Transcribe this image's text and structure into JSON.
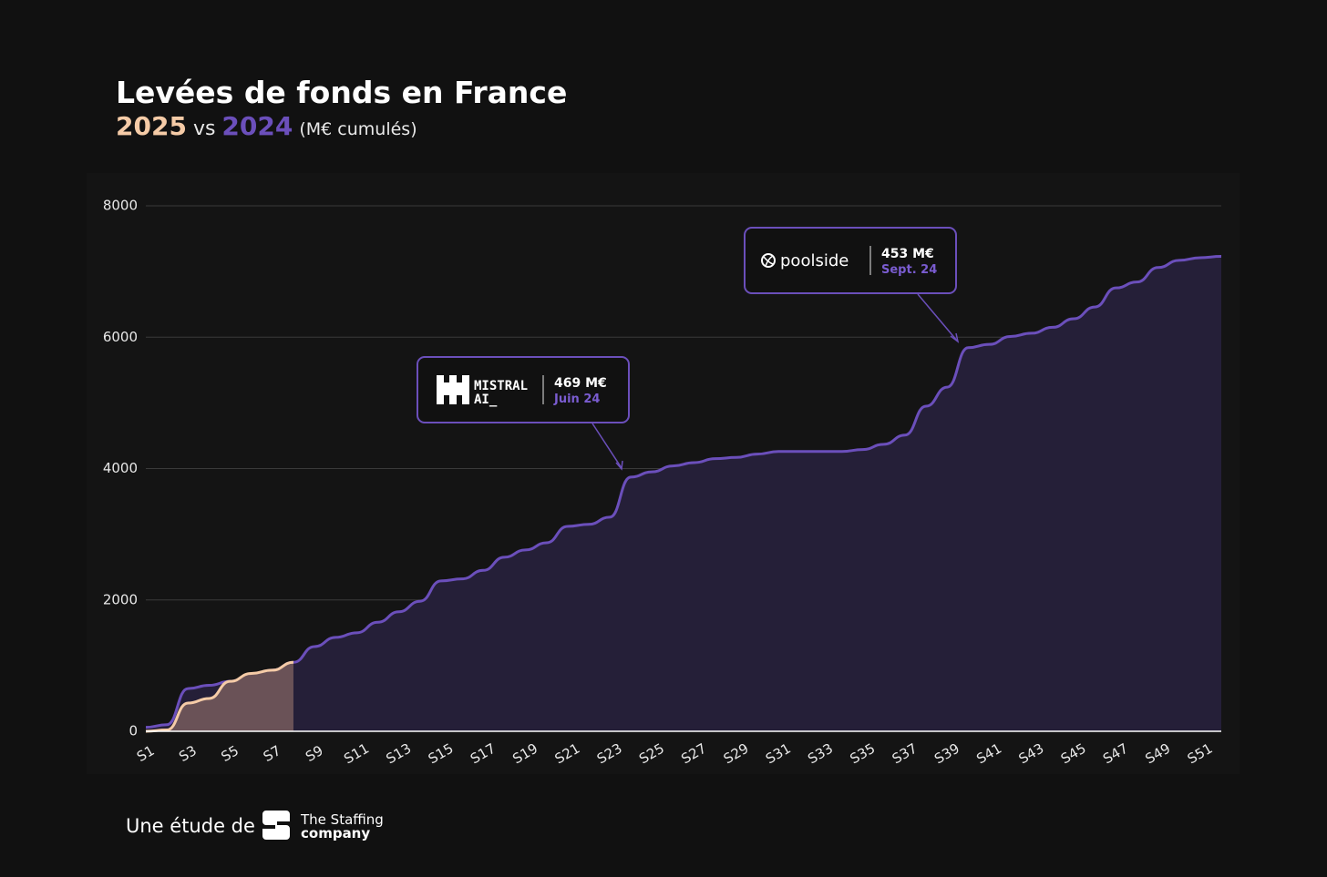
{
  "chart_data": {
    "type": "area",
    "title": "Levées de fonds en France",
    "subtitle": {
      "year_a": "2025",
      "vs": "vs",
      "year_b": "2024",
      "unit": "(M€ cumulés)"
    },
    "categories": [
      "S1",
      null,
      "S3",
      null,
      "S5",
      null,
      "S7",
      null,
      "S9",
      null,
      "S11",
      null,
      "S13",
      null,
      "S15",
      null,
      "S17",
      null,
      "S19",
      null,
      "S21",
      null,
      "S23",
      null,
      "S25",
      null,
      "S27",
      null,
      "S29",
      null,
      "S31",
      null,
      "S33",
      null,
      "S35",
      null,
      "S37",
      null,
      "S39",
      null,
      "S41",
      null,
      "S43",
      null,
      "S45",
      null,
      "S47",
      null,
      "S49",
      null,
      "S51",
      null
    ],
    "series": [
      {
        "name": "2024",
        "color": "#6b4fbb",
        "fill": "#251f38",
        "values": [
          60,
          100,
          650,
          700,
          760,
          870,
          930,
          1050,
          1290,
          1430,
          1500,
          1660,
          1820,
          1980,
          2290,
          2320,
          2450,
          2650,
          2760,
          2870,
          3120,
          3150,
          3260,
          3870,
          3950,
          4040,
          4090,
          4150,
          4170,
          4220,
          4260,
          4260,
          4260,
          4260,
          4290,
          4370,
          4510,
          4950,
          5240,
          5840,
          5890,
          6010,
          6060,
          6150,
          6280,
          6460,
          6750,
          6840,
          7060,
          7170,
          7210,
          7230
        ]
      },
      {
        "name": "2025",
        "color": "#f5cba7",
        "fill": "#6a5257",
        "values": [
          0,
          20,
          430,
          500,
          760,
          880,
          930,
          1050,
          null,
          null,
          null,
          null,
          null,
          null,
          null,
          null,
          null,
          null,
          null,
          null,
          null,
          null,
          null,
          null,
          null,
          null,
          null,
          null,
          null,
          null,
          null,
          null,
          null,
          null,
          null,
          null,
          null,
          null,
          null,
          null,
          null,
          null,
          null,
          null,
          null,
          null,
          null,
          null,
          null,
          null,
          null,
          null
        ]
      }
    ],
    "ylim": [
      0,
      8000
    ],
    "yticks": [
      0,
      2000,
      4000,
      6000,
      8000
    ],
    "grid": true,
    "annotations": [
      {
        "logo_line1": "MISTRAL",
        "logo_line2": "AI_",
        "amount": "469 M€",
        "date": "Juin 24"
      },
      {
        "logo": "poolside",
        "amount": "453 M€",
        "date": "Sept. 24"
      }
    ]
  },
  "footer": {
    "lead": "Une étude de",
    "brand_line1": "The Staffing",
    "brand_line2": "company"
  }
}
